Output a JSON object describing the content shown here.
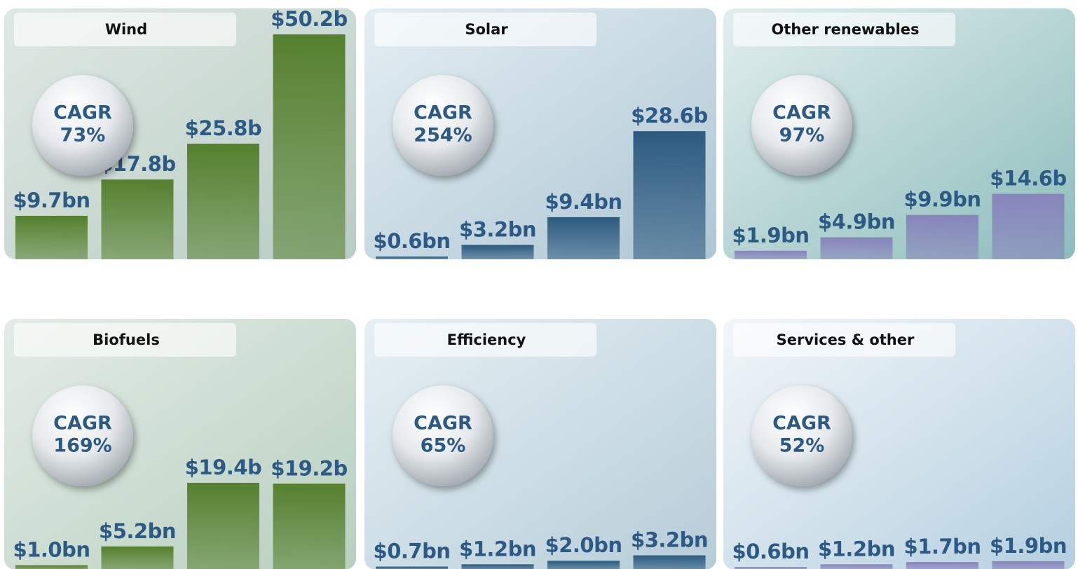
{
  "chart_data": [
    {
      "type": "bar",
      "title": "Wind",
      "cagr_label": "CAGR",
      "cagr": "73%",
      "values": [
        9.7,
        17.8,
        25.8,
        50.2
      ],
      "value_labels": [
        "$9.7bn",
        "$17.8b",
        "$25.8b",
        "$50.2b"
      ],
      "color": "#55802e",
      "ylim": [
        0,
        56
      ]
    },
    {
      "type": "bar",
      "title": "Solar",
      "cagr_label": "CAGR",
      "cagr": "254%",
      "values": [
        0.6,
        3.2,
        9.4,
        28.6
      ],
      "value_labels": [
        "$0.6bn",
        "$3.2bn",
        "$9.4bn",
        "$28.6b"
      ],
      "color": "#2c5a80",
      "ylim": [
        0,
        56
      ]
    },
    {
      "type": "bar",
      "title": "Other renewables",
      "cagr_label": "CAGR",
      "cagr": "97%",
      "values": [
        1.9,
        4.9,
        9.9,
        14.6
      ],
      "value_labels": [
        "$1.9bn",
        "$4.9bn",
        "$9.9bn",
        "$14.6b"
      ],
      "color": "#8784bb",
      "ylim": [
        0,
        56
      ]
    },
    {
      "type": "bar",
      "title": "Biofuels",
      "cagr_label": "CAGR",
      "cagr": "169%",
      "values": [
        1.0,
        5.2,
        19.4,
        19.2
      ],
      "value_labels": [
        "$1.0bn",
        "$5.2bn",
        "$19.4b",
        "$19.2b"
      ],
      "color": "#55802e",
      "ylim": [
        0,
        56
      ]
    },
    {
      "type": "bar",
      "title": "Efficiency",
      "cagr_label": "CAGR",
      "cagr": "65%",
      "values": [
        0.7,
        1.2,
        2.0,
        3.2
      ],
      "value_labels": [
        "$0.7bn",
        "$1.2bn",
        "$2.0bn",
        "$3.2bn"
      ],
      "color": "#2c5a80",
      "ylim": [
        0,
        56
      ]
    },
    {
      "type": "bar",
      "title": "Services & other",
      "cagr_label": "CAGR",
      "cagr": "52%",
      "values": [
        0.6,
        1.2,
        1.7,
        1.9
      ],
      "value_labels": [
        "$0.6bn",
        "$1.2bn",
        "$1.7bn",
        "$1.9bn"
      ],
      "color": "#8784bb",
      "ylim": [
        0,
        56
      ]
    }
  ]
}
